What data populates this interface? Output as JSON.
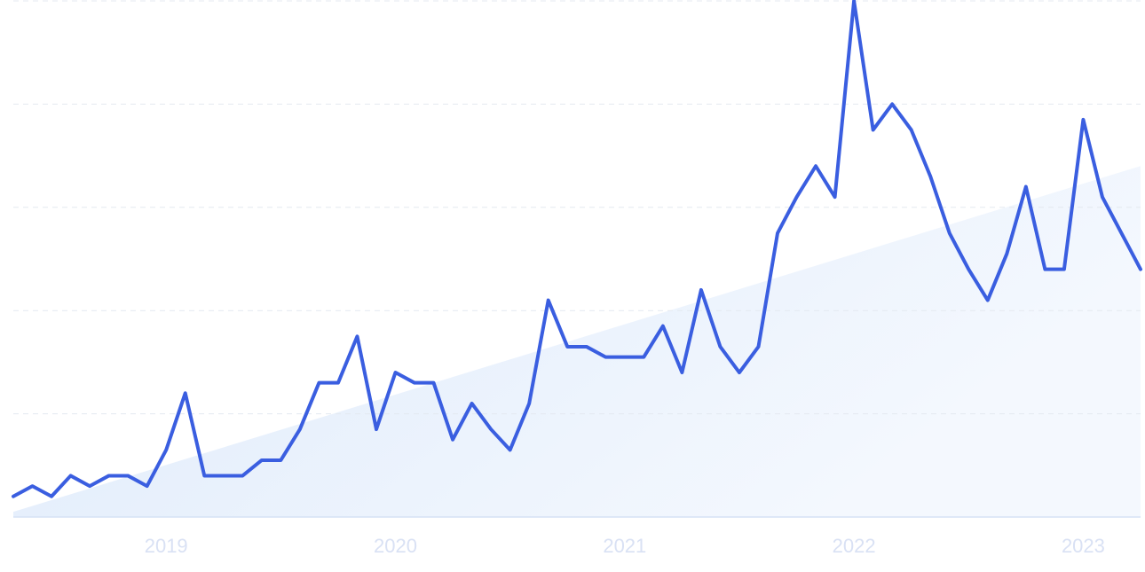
{
  "chart_data": {
    "type": "line",
    "categories": [
      null,
      null,
      null,
      null,
      null,
      null,
      null,
      null,
      "2019",
      null,
      null,
      null,
      null,
      null,
      null,
      null,
      null,
      null,
      null,
      null,
      "2020",
      null,
      null,
      null,
      null,
      null,
      null,
      null,
      null,
      null,
      null,
      null,
      "2021",
      null,
      null,
      null,
      null,
      null,
      null,
      null,
      null,
      null,
      null,
      null,
      "2022",
      null,
      null,
      null,
      null,
      null,
      null,
      null,
      null,
      null,
      null,
      null,
      "2023",
      null,
      null,
      null
    ],
    "series": [
      {
        "color": "#3a5ee0",
        "values": [
          4,
          6,
          4,
          8,
          6,
          8,
          8,
          6,
          13,
          24,
          8,
          8,
          8,
          11,
          11,
          17,
          26,
          26,
          35,
          17,
          28,
          26,
          26,
          15,
          22,
          17,
          13,
          22,
          42,
          33,
          33,
          31,
          31,
          31,
          37,
          28,
          44,
          33,
          28,
          33,
          55,
          62,
          68,
          62,
          100,
          75,
          80,
          75,
          66,
          55,
          48,
          42,
          51,
          64,
          48,
          48,
          77,
          62,
          55,
          48
        ]
      }
    ],
    "trend_values": [
      1,
      68
    ],
    "trend_color": "#dce9fb",
    "ylim": [
      0,
      100
    ],
    "yticks": [
      0,
      20,
      40,
      60,
      80,
      100
    ],
    "grid": true
  }
}
